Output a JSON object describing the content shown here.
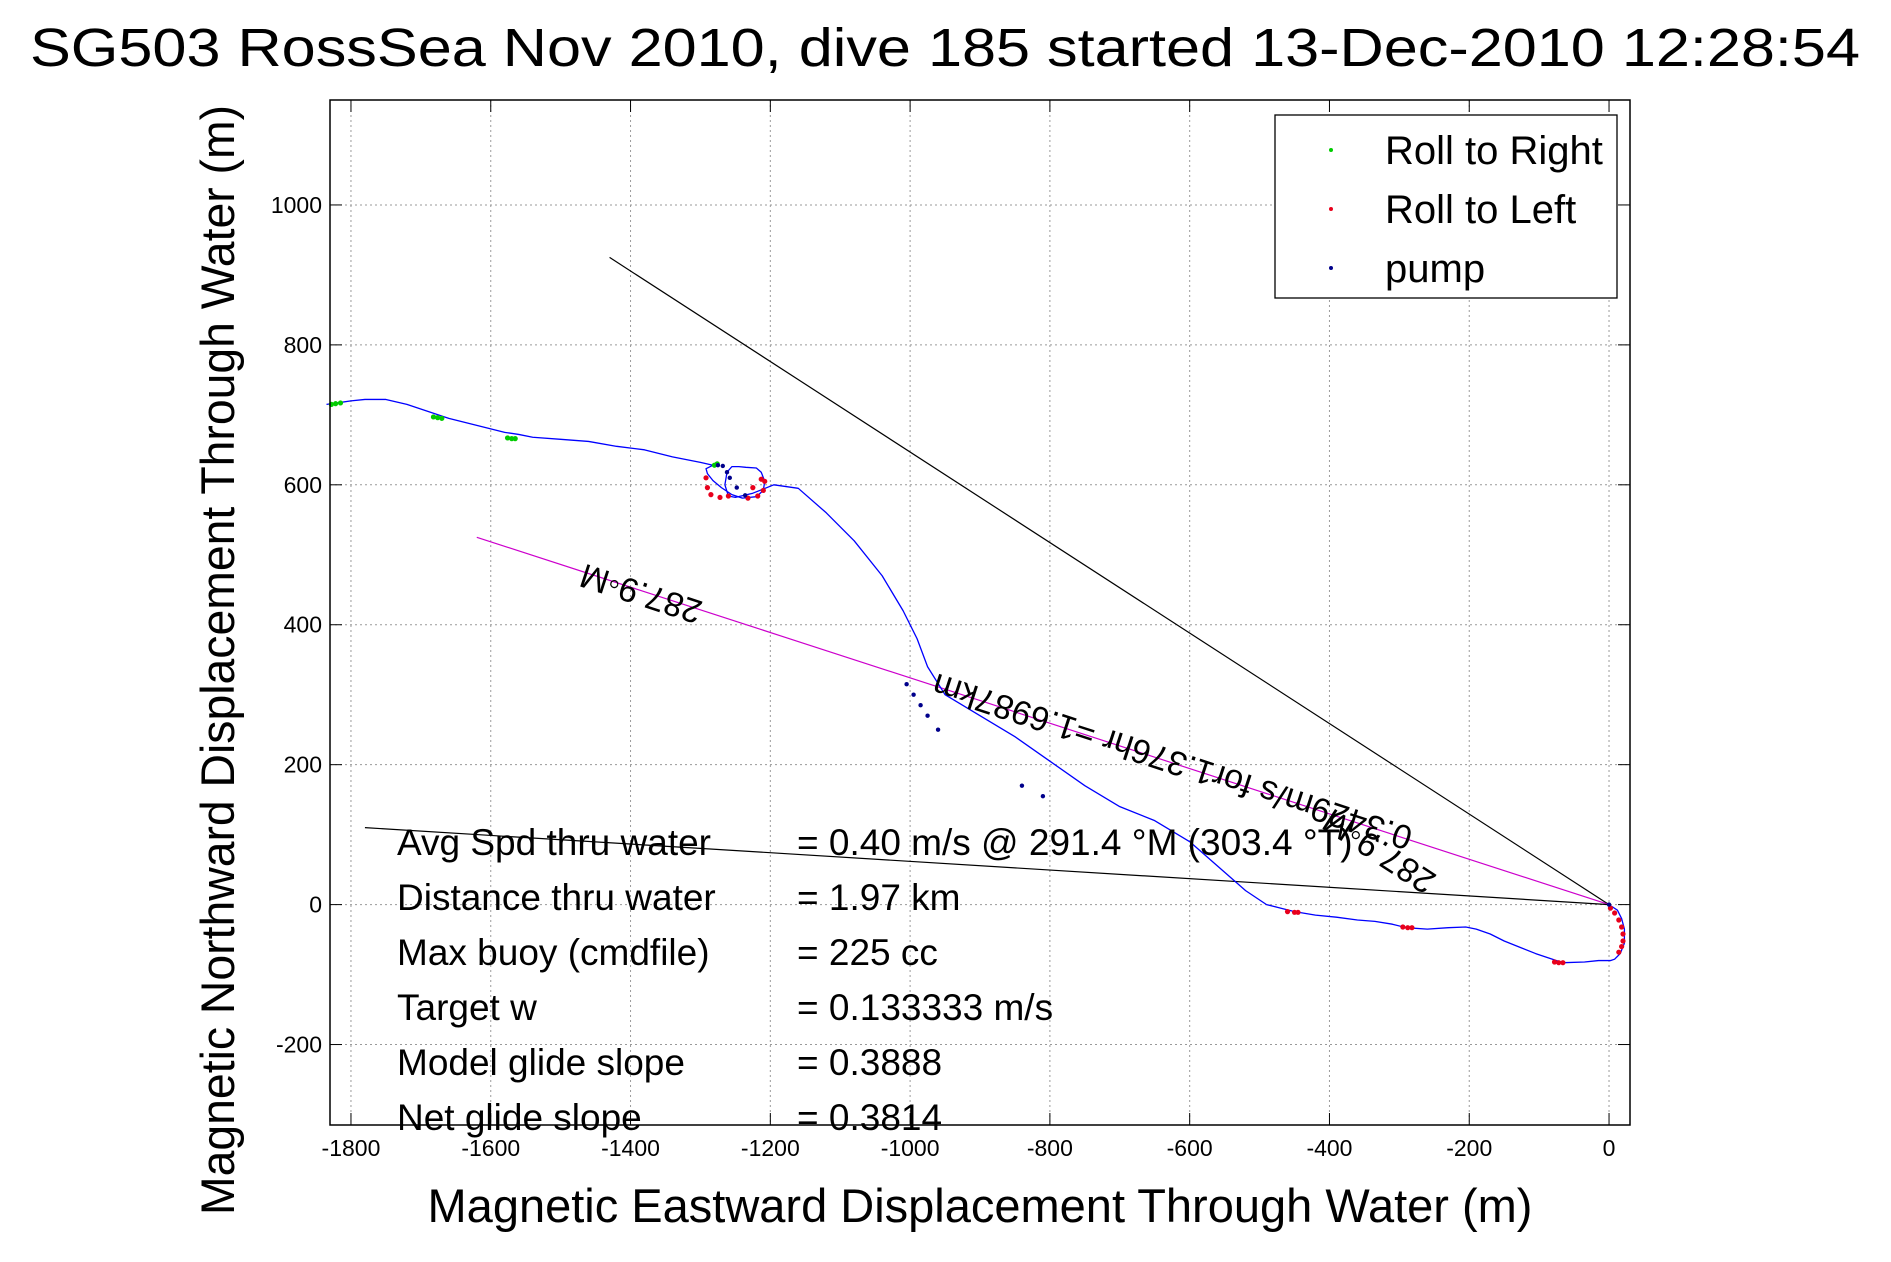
{
  "chart_data": {
    "type": "line",
    "title": "SG503 RossSea Nov 2010, dive 185 started 13-Dec-2010 12:28:54",
    "xlabel": "Magnetic Eastward Displacement Through Water (m)",
    "ylabel": "Magnetic Northward Displacement Through Water (m)",
    "xlim": [
      -1830,
      30
    ],
    "ylim": [
      -315,
      1150
    ],
    "xticks": [
      -1800,
      -1600,
      -1400,
      -1200,
      -1000,
      -800,
      -600,
      -400,
      -200,
      0
    ],
    "yticks": [
      -200,
      0,
      200,
      400,
      600,
      800,
      1000
    ],
    "grid": true,
    "legend": {
      "position": "top-right",
      "entries": [
        {
          "label": "Roll to Right",
          "color": "#00cc00"
        },
        {
          "label": "Roll to Left",
          "color": "#e8001c"
        },
        {
          "label": "pump",
          "color": "#00008b"
        }
      ]
    },
    "series": [
      {
        "color": "#0000ff",
        "x": [
          0,
          12,
          18,
          22,
          22,
          16,
          8,
          2,
          -4,
          -15,
          -35,
          -65,
          -75,
          -90,
          -105,
          -125,
          -150,
          -170,
          -190,
          -205,
          -230,
          -260,
          -290,
          -310,
          -335,
          -360,
          -390,
          -420,
          -450,
          -470,
          -490,
          -520,
          -560,
          -600,
          -650,
          -700,
          -750,
          -800,
          -850,
          -900,
          -950,
          -975,
          -990,
          -1010,
          -1040,
          -1080,
          -1120,
          -1160,
          -1195,
          -1225,
          -1250,
          -1260,
          -1265,
          -1262,
          -1255,
          -1245,
          -1235,
          -1220,
          -1213,
          -1208,
          -1210,
          -1220,
          -1240,
          -1255,
          -1270,
          -1282,
          -1290,
          -1292,
          -1288,
          -1282,
          -1300,
          -1340,
          -1380,
          -1420,
          -1460,
          -1500,
          -1540,
          -1560,
          -1580,
          -1620,
          -1660,
          -1690,
          -1720,
          -1750,
          -1780,
          -1800,
          -1820,
          -1835
        ],
        "y": [
          0,
          -8,
          -20,
          -35,
          -55,
          -70,
          -78,
          -80,
          -80,
          -80,
          -82,
          -83,
          -80,
          -75,
          -70,
          -62,
          -52,
          -42,
          -35,
          -32,
          -33,
          -35,
          -33,
          -28,
          -24,
          -22,
          -18,
          -15,
          -10,
          -5,
          0,
          20,
          55,
          90,
          120,
          140,
          170,
          205,
          240,
          270,
          300,
          340,
          380,
          420,
          470,
          520,
          560,
          595,
          600,
          588,
          582,
          584,
          600,
          618,
          626,
          626,
          625,
          624,
          618,
          605,
          592,
          583,
          581,
          586,
          596,
          606,
          616,
          623,
          625,
          628,
          632,
          640,
          650,
          655,
          662,
          665,
          668,
          672,
          675,
          685,
          695,
          705,
          715,
          722,
          722,
          720,
          717,
          715
        ]
      }
    ],
    "roll_right_x": [
      -1828,
      -1822,
      -1815,
      -1682,
      -1676,
      -1670,
      -1576,
      -1570,
      -1565,
      -1280,
      -1276
    ],
    "roll_right_y": [
      715,
      716,
      717,
      697,
      696,
      695,
      667,
      666,
      666,
      628,
      630
    ],
    "roll_left_x": [
      -1292,
      -1290,
      -1285,
      -1272,
      -1260,
      -1225,
      -1213,
      -1208,
      -1210,
      -1218,
      -1232,
      -460,
      -450,
      -445,
      -295,
      -288,
      -282,
      -78,
      -72,
      -66,
      2,
      8,
      14,
      18,
      20,
      20,
      18,
      14
    ],
    "roll_left_y": [
      610,
      596,
      586,
      582,
      584,
      596,
      608,
      605,
      592,
      584,
      581,
      -10,
      -11,
      -11,
      -32,
      -33,
      -33,
      -82,
      -83,
      -83,
      -5,
      -12,
      -22,
      -32,
      -42,
      -52,
      -60,
      -68
    ],
    "pump_x": [
      -1275,
      -1268,
      -1262,
      -1258,
      -1248,
      -1236,
      -1005,
      -995,
      -985,
      -975,
      -960,
      -840,
      -810,
      0
    ],
    "pump_y": [
      628,
      627,
      618,
      610,
      596,
      585,
      315,
      300,
      285,
      270,
      250,
      170,
      155,
      0
    ],
    "ref_lines": [
      {
        "color": "#000000",
        "x": [
          -1430,
          0
        ],
        "y": [
          925,
          0
        ]
      },
      {
        "color": "#cc00cc",
        "x": [
          -1620,
          0
        ],
        "y": [
          525,
          0
        ]
      },
      {
        "color": "#000000",
        "x": [
          -1780,
          0
        ],
        "y": [
          110,
          0
        ]
      }
    ],
    "annotations": [
      {
        "text": "287.9◦M",
        "x": -1380,
        "y": 460,
        "angle": 198
      },
      {
        "text": "0.3429m/s for1.376hr =1.6987km",
        "x": -620,
        "y": 220,
        "angle": 198
      },
      {
        "text": "287.9◦M",
        "x": -320,
        "y": 90,
        "angle": 213
      }
    ],
    "stats": [
      {
        "label": "Avg Spd thru water",
        "value": "=  0.40 m/s @ 291.4 °M (303.4 °T)"
      },
      {
        "label": "Distance thru water",
        "value": "=  1.97 km"
      },
      {
        "label": "Max buoy (cmdfile)",
        "value": "= 225 cc"
      },
      {
        "label": "Target w",
        "value": "= 0.133333 m/s"
      },
      {
        "label": "Model glide slope",
        "value": "= 0.3888"
      },
      {
        "label": "Net glide slope",
        "value": "= 0.3814"
      }
    ]
  }
}
